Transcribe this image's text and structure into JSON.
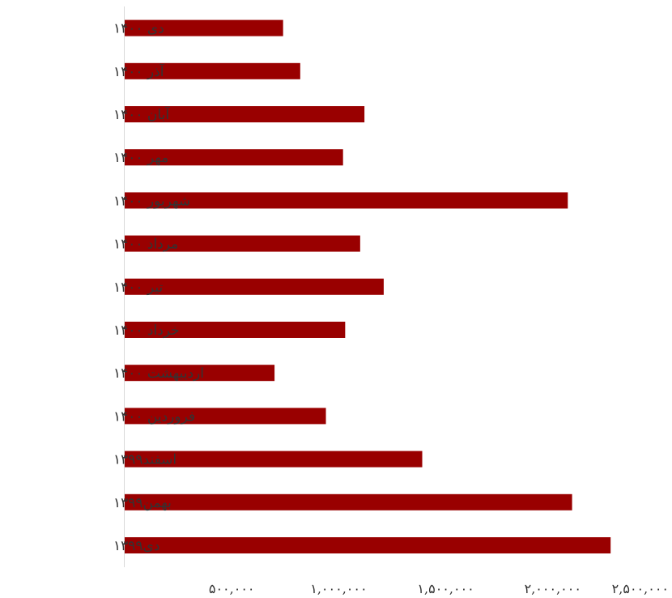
{
  "chart_data": {
    "type": "bar",
    "orientation": "horizontal",
    "categories": [
      "دی ۱۴۰۰",
      "آذر ۱۴۰۰",
      "آبان ۱۴۰۰",
      "مهر ۱۴۰۰",
      "شهریور ۱۴۰۰",
      "مرداد ۱۴۰۰",
      "تیر ۱۴۰۰",
      "خرداد ۱۴۰۰",
      "اردیبهشت ۱۴۰۰",
      "فروردین ۱۴۰۰",
      "اسفند۱۳۹۹",
      "بهمن۱۳۹۹",
      "دی۱۳۹۹"
    ],
    "values": [
      740000,
      820000,
      1120000,
      1020000,
      2070000,
      1100000,
      1210000,
      1030000,
      700000,
      940000,
      1390000,
      2090000,
      2270000
    ],
    "xlim": [
      0,
      2500000
    ],
    "x_ticks": [
      500000,
      1000000,
      1500000,
      2000000,
      2500000
    ],
    "x_tick_labels": [
      "۵۰۰,۰۰۰",
      "۱,۰۰۰,۰۰۰",
      "۱,۵۰۰,۰۰۰",
      "۲,۰۰۰,۰۰۰",
      "۲,۵۰۰,۰۰۰"
    ],
    "bar_color": "#990000",
    "axis_color": "#d9d9d9",
    "grid": false,
    "legend": "none",
    "title": "",
    "xlabel": "",
    "ylabel": ""
  }
}
